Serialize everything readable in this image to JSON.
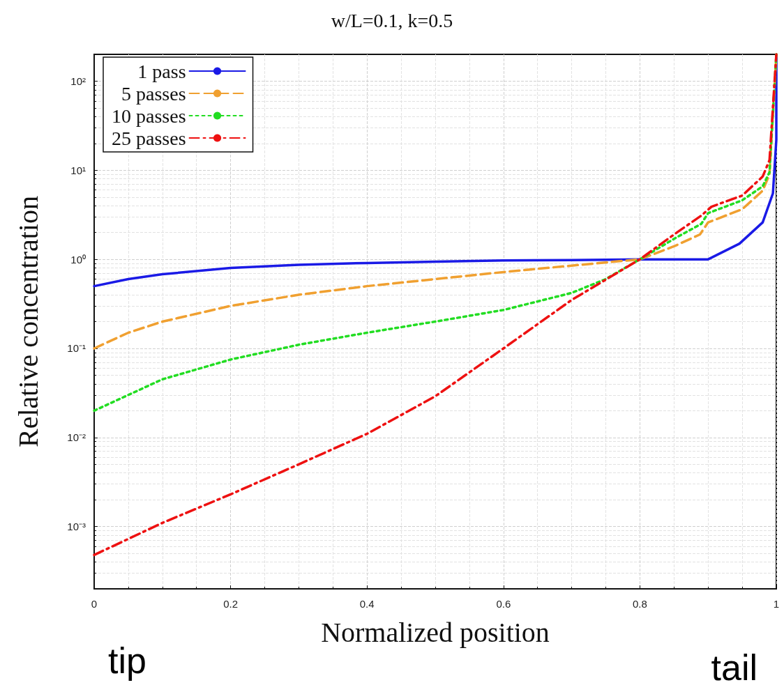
{
  "chart_data": {
    "type": "line",
    "title": "w/L=0.1, k=0.5",
    "xlabel": "Normalized position",
    "ylabel": "Relative concentration",
    "annotations": [
      "tip",
      "tail"
    ],
    "xlim": [
      0,
      1
    ],
    "xticks": [
      0,
      0.2,
      0.4,
      0.6,
      0.8,
      1
    ],
    "ylim": [
      0.0002,
      200
    ],
    "yticks": [
      {
        "value": 0.001,
        "label": "10⁻³"
      },
      {
        "value": 0.01,
        "label": "10⁻²"
      },
      {
        "value": 0.1,
        "label": "10⁻¹"
      },
      {
        "value": 1,
        "label": "10⁰"
      },
      {
        "value": 10,
        "label": "10¹"
      },
      {
        "value": 100,
        "label": "10²"
      }
    ],
    "log": "y",
    "grid": true,
    "legend": "top left",
    "marker": "none",
    "series": [
      {
        "name": "1 pass",
        "color": "#1a1ae6",
        "line_style": "solid",
        "x": [
          0,
          0.05,
          0.1,
          0.2,
          0.3,
          0.4,
          0.5,
          0.6,
          0.7,
          0.8,
          0.9,
          0.946,
          0.98,
          0.995,
          1,
          1
        ],
        "values": [
          0.5,
          0.6,
          0.68,
          0.8,
          0.87,
          0.91,
          0.94,
          0.97,
          0.98,
          1,
          1,
          1.5,
          2.6,
          5.5,
          22,
          200
        ]
      },
      {
        "name": "5 passes",
        "color": "#f0a030",
        "line_style": "dashed",
        "x": [
          0,
          0.05,
          0.1,
          0.2,
          0.3,
          0.4,
          0.5,
          0.6,
          0.7,
          0.8,
          0.85,
          0.888,
          0.9,
          0.95,
          0.98,
          0.99,
          1
        ],
        "values": [
          0.1,
          0.15,
          0.2,
          0.3,
          0.4,
          0.5,
          0.6,
          0.72,
          0.85,
          1,
          1.4,
          1.9,
          2.6,
          3.65,
          5.9,
          9,
          200
        ]
      },
      {
        "name": "10 passes",
        "color": "#22dd22",
        "line_style": "dotted",
        "x": [
          0,
          0.05,
          0.1,
          0.2,
          0.3,
          0.4,
          0.5,
          0.6,
          0.7,
          0.75,
          0.8,
          0.85,
          0.89,
          0.9,
          0.95,
          0.98,
          0.99,
          1
        ],
        "values": [
          0.02,
          0.03,
          0.045,
          0.075,
          0.11,
          0.15,
          0.2,
          0.27,
          0.42,
          0.6,
          1,
          1.7,
          2.5,
          3.3,
          4.6,
          6.6,
          9.5,
          200
        ]
      },
      {
        "name": "25 passes",
        "color": "#ee1111",
        "line_style": "dashed",
        "x": [
          0,
          0.1,
          0.2,
          0.3,
          0.4,
          0.5,
          0.6,
          0.7,
          0.8,
          0.85,
          0.89,
          0.905,
          0.95,
          0.98,
          0.99,
          1
        ],
        "values": [
          0.00048,
          0.0011,
          0.0023,
          0.005,
          0.011,
          0.029,
          0.1,
          0.35,
          1,
          1.9,
          3.1,
          3.9,
          5.2,
          8.5,
          13,
          200
        ]
      }
    ]
  }
}
